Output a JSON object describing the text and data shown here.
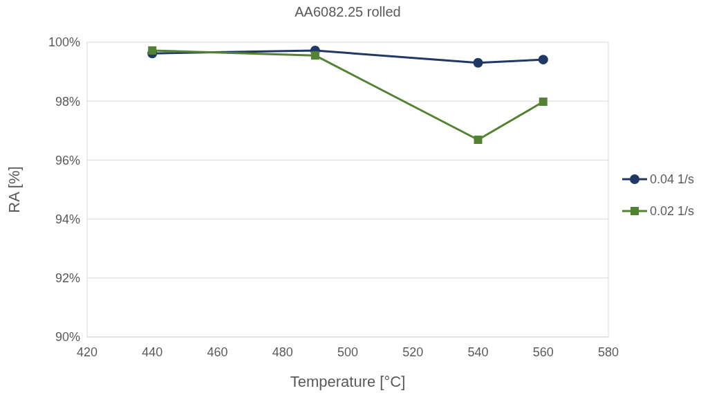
{
  "chart_data": {
    "type": "line",
    "title": "AA6082.25 rolled",
    "xlabel": "Temperature [°C]",
    "ylabel": "RA [%]",
    "x": [
      440,
      490,
      540,
      560
    ],
    "series": [
      {
        "name": "0.04 1/s",
        "color": "#203864",
        "values": [
          99.62,
          99.72,
          99.3,
          99.41
        ],
        "marker": "circle"
      },
      {
        "name": "0.02 1/s",
        "color": "#548235",
        "values": [
          99.72,
          99.55,
          96.69,
          97.98
        ],
        "marker": "square"
      }
    ],
    "xlim": [
      420,
      580
    ],
    "xticks": [
      420,
      440,
      460,
      480,
      500,
      520,
      540,
      560,
      580
    ],
    "ylim": [
      90,
      100
    ],
    "yticks": [
      {
        "value": 90,
        "label": "90%"
      },
      {
        "value": 92,
        "label": "92%"
      },
      {
        "value": 94,
        "label": "94%"
      },
      {
        "value": 96,
        "label": "96%"
      },
      {
        "value": 98,
        "label": "98%"
      },
      {
        "value": 100,
        "label": "100%"
      }
    ],
    "grid": "y",
    "legend": "right",
    "line_style": "solid"
  }
}
